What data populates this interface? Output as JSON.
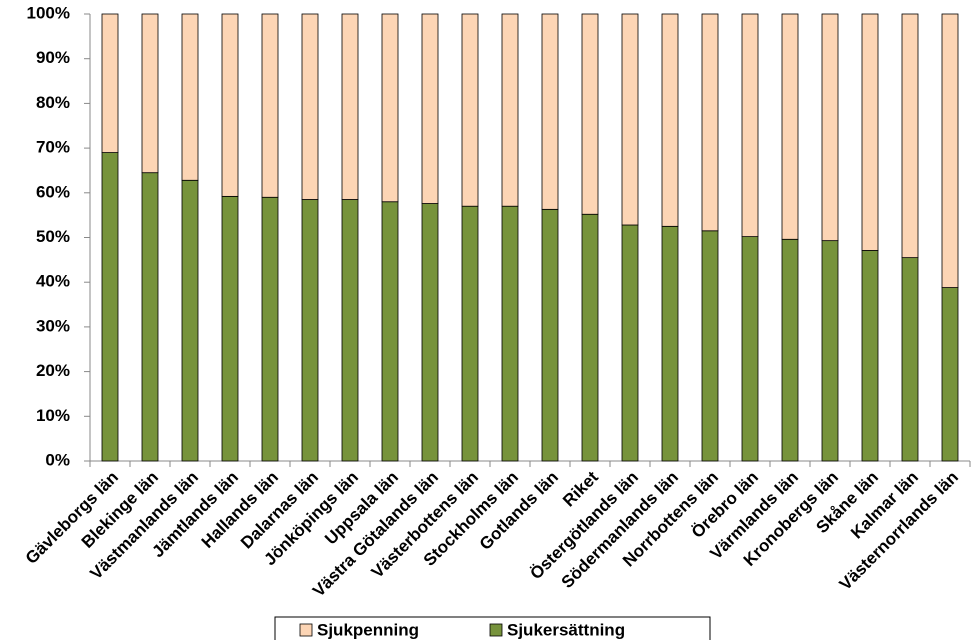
{
  "chart_data": {
    "type": "stacked-bar",
    "categories": [
      "Gävleborgs län",
      "Blekinge län",
      "Västmanlands län",
      "Jämtlands län",
      "Hallands län",
      "Dalarnas län",
      "Jönköpings län",
      "Uppsala län",
      "Västra Götalands län",
      "Västerbottens län",
      "Stockholms län",
      "Gotlands län",
      "Riket",
      "Östergötlands län",
      "Södermanlands län",
      "Norrbottens län",
      "Örebro län",
      "Värmlands län",
      "Kronobergs län",
      "Skåne län",
      "Kalmar län",
      "Västernorrlands län"
    ],
    "series": [
      {
        "name": "Sjukpenning",
        "color": "#fcd5b5",
        "values": [
          31,
          35.5,
          37.2,
          40.8,
          41,
          41.5,
          41.5,
          42,
          42.4,
          43,
          43,
          43.7,
          44.8,
          47.2,
          47.5,
          48.5,
          49.8,
          50.4,
          50.7,
          52.9,
          54.5,
          61.2
        ]
      },
      {
        "name": "Sjukersättning",
        "color": "#77933c",
        "values": [
          69,
          64.5,
          62.8,
          59.2,
          59,
          58.5,
          58.5,
          58,
          57.6,
          57,
          57,
          56.3,
          55.2,
          52.8,
          52.5,
          51.5,
          50.2,
          49.6,
          49.3,
          47.1,
          45.5,
          38.8
        ]
      }
    ],
    "ylim": [
      0,
      100
    ],
    "yticks": [
      {
        "value": 0,
        "label": "0%"
      },
      {
        "value": 10,
        "label": "10%"
      },
      {
        "value": 20,
        "label": "20%"
      },
      {
        "value": 30,
        "label": "30%"
      },
      {
        "value": 40,
        "label": "40%"
      },
      {
        "value": 50,
        "label": "50%"
      },
      {
        "value": 60,
        "label": "60%"
      },
      {
        "value": 70,
        "label": "70%"
      },
      {
        "value": 80,
        "label": "80%"
      },
      {
        "value": 90,
        "label": "90%"
      },
      {
        "value": 100,
        "label": "100%"
      }
    ],
    "grid": false,
    "legend": "bottom"
  }
}
